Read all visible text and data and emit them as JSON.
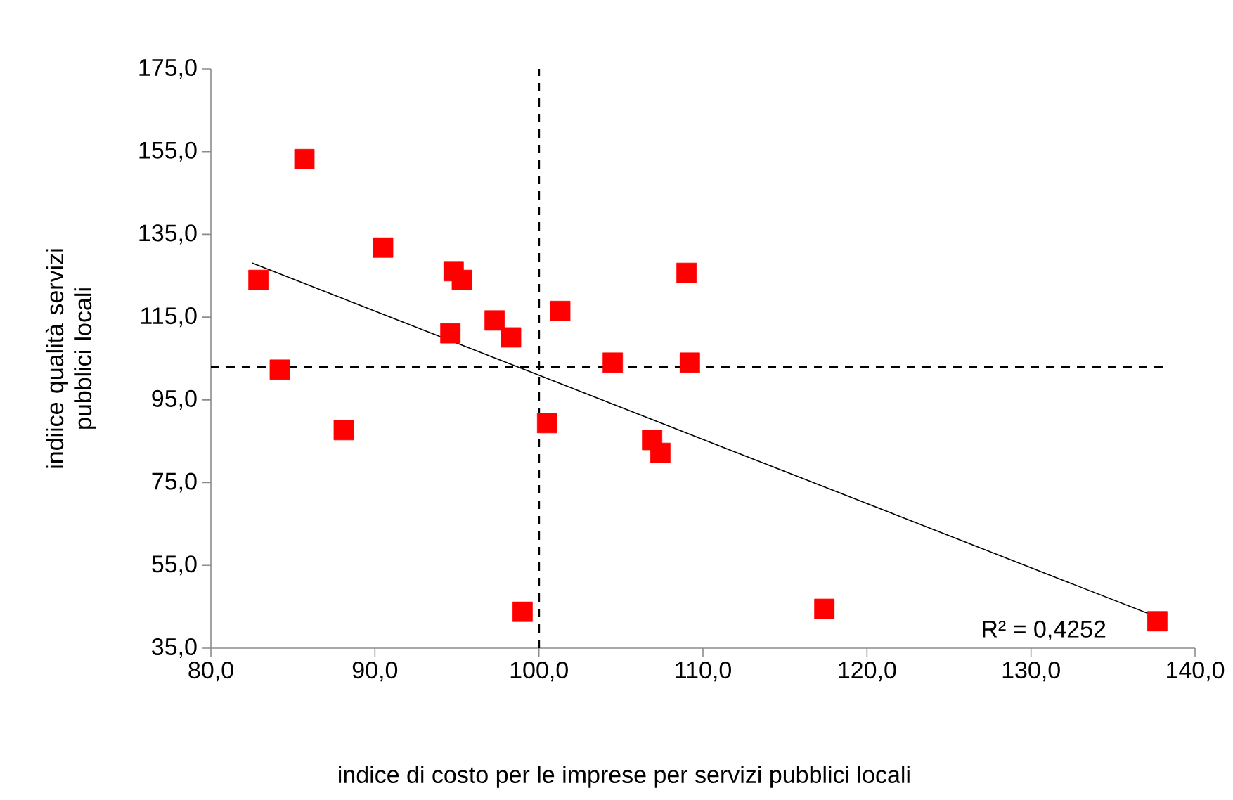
{
  "chart_data": {
    "type": "scatter",
    "xlabel": "indice di costo per le imprese per servizi pubblici locali",
    "ylabel": "indiice qualità servizi pubblici locali",
    "xlim": [
      80,
      140
    ],
    "ylim": [
      35,
      175
    ],
    "xticks": [
      {
        "value": 80,
        "label": "80,0"
      },
      {
        "value": 90,
        "label": "90,0"
      },
      {
        "value": 100,
        "label": "100,0"
      },
      {
        "value": 110,
        "label": "110,0"
      },
      {
        "value": 120,
        "label": "120,0"
      },
      {
        "value": 130,
        "label": "130,0"
      },
      {
        "value": 140,
        "label": "140,0"
      }
    ],
    "yticks": [
      {
        "value": 35,
        "label": "35,0"
      },
      {
        "value": 55,
        "label": "55,0"
      },
      {
        "value": 75,
        "label": "75,0"
      },
      {
        "value": 95,
        "label": "95,0"
      },
      {
        "value": 115,
        "label": "115,0"
      },
      {
        "value": 135,
        "label": "135,0"
      },
      {
        "value": 155,
        "label": "155,0"
      },
      {
        "value": 175,
        "label": "175,0"
      }
    ],
    "grid": false,
    "series": [
      {
        "color": "#ff0000",
        "marker": "square",
        "x": [
          82.9,
          85.7,
          84.2,
          88.1,
          90.5,
          94.8,
          95.3,
          94.6,
          97.3,
          98.3,
          99.0,
          101.3,
          100.5,
          104.5,
          106.9,
          107.4,
          109.0,
          109.2,
          117.4,
          137.7
        ],
        "values": [
          124.0,
          153.2,
          102.3,
          87.7,
          131.8,
          126.1,
          124.0,
          111.1,
          114.2,
          110.1,
          43.8,
          116.5,
          89.4,
          104.0,
          85.3,
          82.2,
          125.7,
          104.0,
          44.5,
          41.5
        ]
      },
      {
        "type": "line",
        "color": "#000000",
        "marker": "none",
        "x": [
          82.5,
          137.7
        ],
        "values": [
          128.1,
          42.5
        ]
      }
    ],
    "ref_lines": [
      {
        "axis": "x",
        "value": 100,
        "line_style": "dashed"
      },
      {
        "axis": "y",
        "value": 103,
        "line_style": "dashed"
      }
    ],
    "annotations": [
      "R² = 0,4252"
    ]
  }
}
